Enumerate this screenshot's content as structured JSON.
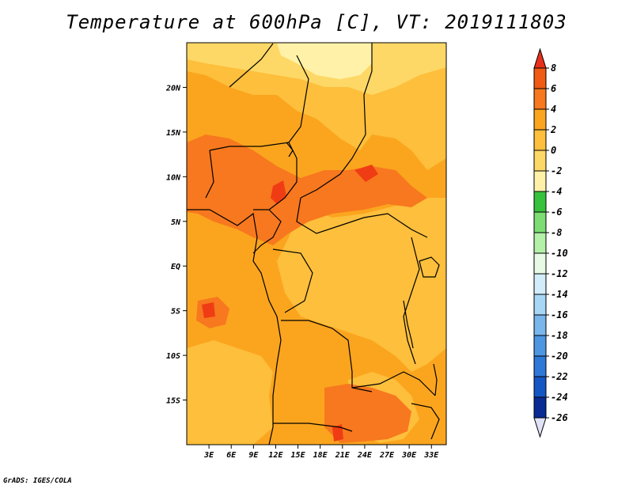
{
  "title": "Temperature at 600hPa [C], VT: 2019111803",
  "credit": "GrADS: IGES/COLA",
  "map": {
    "lon_range": [
      0,
      35
    ],
    "lat_range": [
      -20,
      25
    ],
    "lat_ticks": [
      {
        "value": 20,
        "label": "20N"
      },
      {
        "value": 15,
        "label": "15N"
      },
      {
        "value": 10,
        "label": "10N"
      },
      {
        "value": 5,
        "label": "5N"
      },
      {
        "value": 0,
        "label": "EQ"
      },
      {
        "value": -5,
        "label": "5S"
      },
      {
        "value": -10,
        "label": "10S"
      },
      {
        "value": -15,
        "label": "15S"
      }
    ],
    "lon_ticks": [
      {
        "value": 3,
        "label": "3E"
      },
      {
        "value": 6,
        "label": "6E"
      },
      {
        "value": 9,
        "label": "9E"
      },
      {
        "value": 12,
        "label": "12E"
      },
      {
        "value": 15,
        "label": "15E"
      },
      {
        "value": 18,
        "label": "18E"
      },
      {
        "value": 21,
        "label": "21E"
      },
      {
        "value": 24,
        "label": "24E"
      },
      {
        "value": 27,
        "label": "27E"
      },
      {
        "value": 30,
        "label": "30E"
      },
      {
        "value": 33,
        "label": "33E"
      }
    ],
    "colors": {
      "above_6": "#f03c14",
      "4_6": "#f7781e",
      "2_4": "#fba51e",
      "0_2": "#fdbf3c",
      "-2_0": "#fed866",
      "-4_-2": "#fff2a8"
    }
  },
  "colorbar": {
    "labels": [
      "8",
      "6",
      "4",
      "2",
      "0",
      "-2",
      "-4",
      "-6",
      "-8",
      "-10",
      "-12",
      "-14",
      "-16",
      "-18",
      "-20",
      "-22",
      "-24",
      "-26"
    ],
    "colors": [
      "#e8301a",
      "#f05a14",
      "#f7781e",
      "#fba51e",
      "#fdbf3c",
      "#fed866",
      "#fff2a8",
      "#37c23e",
      "#7ddd72",
      "#b3f0a8",
      "#e6fae6",
      "#d2ecfa",
      "#a8d6f5",
      "#78b6ec",
      "#4e96e2",
      "#2e78d8",
      "#1456c4",
      "#0a2a94",
      "#080a66"
    ],
    "end_low": "#e0e2f8"
  }
}
